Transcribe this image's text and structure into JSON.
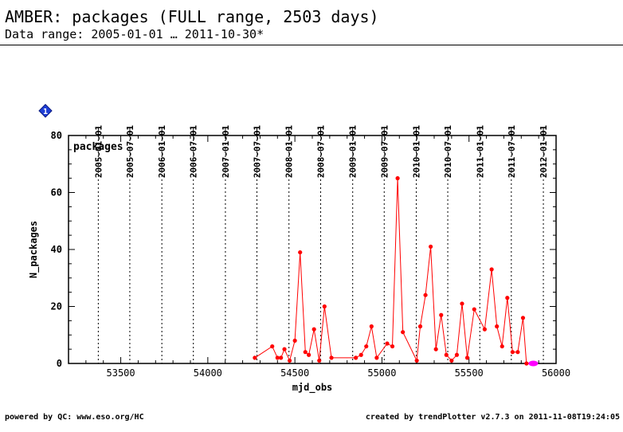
{
  "header": {
    "title": "AMBER: packages (FULL range, 2503 days)",
    "subtitle": "Data range: 2005-01-01 … 2011-10-30*"
  },
  "footer": {
    "left": "powered by QC: www.eso.org/HC",
    "right": "created by trendPlotter v2.7.3 on 2011-11-08T19:24:05"
  },
  "marker_label": "1",
  "chart_data": {
    "type": "line",
    "panel_label": "packages",
    "xlabel": "mjd_obs",
    "ylabel": "N_packages",
    "xlim": [
      53200,
      56000
    ],
    "ylim": [
      0,
      80
    ],
    "xticks": [
      53500,
      54000,
      54500,
      55000,
      55500,
      56000
    ],
    "yticks": [
      0,
      20,
      40,
      60,
      80
    ],
    "date_ticks": [
      {
        "label": "2005-01-01",
        "mjd": 53371
      },
      {
        "label": "2005-07-01",
        "mjd": 53552
      },
      {
        "label": "2006-01-01",
        "mjd": 53736
      },
      {
        "label": "2006-07-01",
        "mjd": 53917
      },
      {
        "label": "2007-01-01",
        "mjd": 54101
      },
      {
        "label": "2007-07-01",
        "mjd": 54282
      },
      {
        "label": "2008-01-01",
        "mjd": 54466
      },
      {
        "label": "2008-07-01",
        "mjd": 54648
      },
      {
        "label": "2009-01-01",
        "mjd": 54832
      },
      {
        "label": "2009-07-01",
        "mjd": 55013
      },
      {
        "label": "2010-01-01",
        "mjd": 55197
      },
      {
        "label": "2010-07-01",
        "mjd": 55378
      },
      {
        "label": "2011-01-01",
        "mjd": 55562
      },
      {
        "label": "2011-07-01",
        "mjd": 55743
      },
      {
        "label": "2012-01-01",
        "mjd": 55927
      }
    ],
    "grid": "vertical dotted at date ticks",
    "series_color": "#ff0000",
    "highlight_color": "#ff00ff",
    "series": [
      {
        "x": [
          54270,
          54370,
          54400,
          54420,
          54440,
          54470,
          54500,
          54530,
          54560,
          54580,
          54610,
          54640,
          54670,
          54710,
          54850,
          54880,
          54910,
          54940,
          54970,
          55030,
          55060,
          55090,
          55120,
          55200,
          55220,
          55250,
          55280,
          55310,
          55340,
          55370,
          55400,
          55430,
          55460,
          55490,
          55530,
          55590,
          55630,
          55660,
          55690,
          55720,
          55750,
          55780,
          55810,
          55830,
          55860
        ],
        "y": [
          2,
          6,
          2,
          2,
          5,
          1,
          8,
          39,
          4,
          3,
          12,
          1,
          20,
          2,
          2,
          3,
          6,
          13,
          2,
          7,
          6,
          65,
          11,
          1,
          13,
          24,
          41,
          5,
          17,
          3,
          1,
          3,
          21,
          2,
          19,
          12,
          33,
          13,
          6,
          23,
          4,
          4,
          16,
          0,
          0
        ]
      }
    ]
  }
}
